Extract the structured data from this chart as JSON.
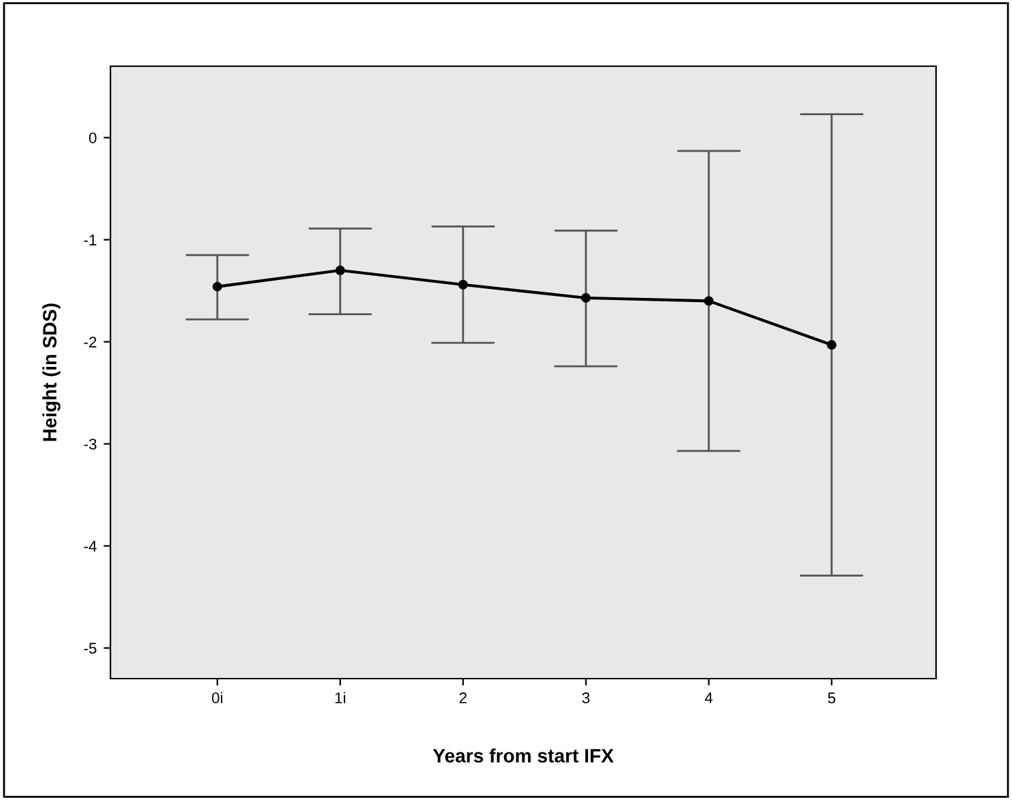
{
  "chart_data": {
    "type": "line",
    "xlabel": "Years from start IFX",
    "ylabel": "Height (in SDS)",
    "categories": [
      "0i",
      "1i",
      "2",
      "3",
      "4",
      "5"
    ],
    "color": "#000000",
    "values": [
      -1.46,
      -1.3,
      -1.44,
      -1.57,
      -1.6,
      -2.03
    ],
    "errors": [
      [
        -1.78,
        -1.15
      ],
      [
        -1.73,
        -0.89
      ],
      [
        -2.01,
        -0.87
      ],
      [
        -2.24,
        -0.91
      ],
      [
        -3.07,
        -0.13
      ],
      [
        -4.29,
        0.23
      ]
    ],
    "ylim": [
      -5.3,
      0.7
    ],
    "yticks": [
      0,
      -1,
      -2,
      -3,
      -4,
      -5
    ],
    "marker": "circle",
    "line_style": "solid"
  }
}
